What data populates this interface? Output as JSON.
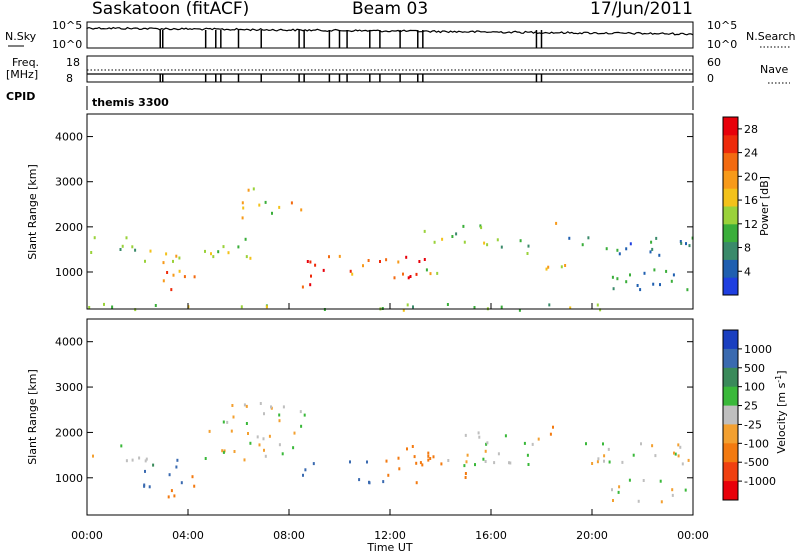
{
  "header": {
    "station": "Saskatoon (fitACF)",
    "beam": "Beam 03",
    "date": "17/Jun/2011"
  },
  "top_panels": {
    "noise_label_left": "N.Sky",
    "noise_label_right": "N.Search",
    "noise_ticks_left": [
      "10^5",
      "10^0"
    ],
    "noise_ticks_right": [
      "10^5",
      "10^0"
    ],
    "freq_label": "Freq.",
    "freq_unit": "[MHz]",
    "freq_ticks": [
      "18",
      "8"
    ],
    "nave_label": "Nave",
    "nave_ticks": [
      "60",
      "0"
    ],
    "cpid_label": "CPID",
    "cpid_value": "themis 3300"
  },
  "chart_data": [
    {
      "type": "heatmap",
      "name": "power",
      "ylabel": "Slant Range [km]",
      "xlabel": "",
      "ylim": [
        180,
        4500
      ],
      "yticks": [
        "1000",
        "2000",
        "3000",
        "4000"
      ],
      "xlim": [
        0,
        24
      ],
      "colorbar": {
        "label": "Power [dB]",
        "ticks": [
          "4",
          "8",
          "12",
          "16",
          "20",
          "24",
          "28"
        ],
        "range": [
          0,
          30
        ],
        "colors": [
          "#1f3fe0",
          "#1f5fb0",
          "#3a8a6a",
          "#3aae3a",
          "#9ad23a",
          "#f3c21a",
          "#f79a1a",
          "#f36a10",
          "#ee2a0a",
          "#e8000a"
        ]
      },
      "regions": [
        {
          "t0": 0.0,
          "t1": 2.6,
          "r0": 1400,
          "r1": 1800,
          "level": 10
        },
        {
          "t0": 2.2,
          "t1": 4.0,
          "r0": 800,
          "r1": 1500,
          "level": 16
        },
        {
          "t0": 3.1,
          "t1": 4.4,
          "r0": 600,
          "r1": 1100,
          "level": 26
        },
        {
          "t0": 4.6,
          "t1": 6.6,
          "r0": 1300,
          "r1": 2000,
          "level": 14
        },
        {
          "t0": 6.0,
          "t1": 7.6,
          "r0": 2200,
          "r1": 2900,
          "level": 16
        },
        {
          "t0": 7.4,
          "t1": 8.6,
          "r0": 2300,
          "r1": 2600,
          "level": 20
        },
        {
          "t0": 8.1,
          "t1": 9.6,
          "r0": 650,
          "r1": 1400,
          "level": 28
        },
        {
          "t0": 9.8,
          "t1": 10.6,
          "r0": 900,
          "r1": 1400,
          "level": 22
        },
        {
          "t0": 10.6,
          "t1": 11.9,
          "r0": 1000,
          "r1": 1400,
          "level": 24
        },
        {
          "t0": 11.9,
          "t1": 13.4,
          "r0": 900,
          "r1": 1700,
          "level": 26
        },
        {
          "t0": 13.4,
          "t1": 14.6,
          "r0": 900,
          "r1": 1200,
          "level": 16
        },
        {
          "t0": 13.0,
          "t1": 16.2,
          "r0": 1600,
          "r1": 2100,
          "level": 12
        },
        {
          "t0": 16.2,
          "t1": 17.6,
          "r0": 1300,
          "r1": 1800,
          "level": 8
        },
        {
          "t0": 18.0,
          "t1": 19.0,
          "r0": 1000,
          "r1": 1500,
          "level": 18
        },
        {
          "t0": 18.3,
          "t1": 18.7,
          "r0": 1900,
          "r1": 2400,
          "level": 22
        },
        {
          "t0": 19.0,
          "t1": 24.0,
          "r0": 1300,
          "r1": 1800,
          "level": 6
        },
        {
          "t0": 20.6,
          "t1": 24.0,
          "r0": 500,
          "r1": 1100,
          "level": 6
        },
        {
          "t0": 0.0,
          "t1": 24.0,
          "r0": 180,
          "r1": 320,
          "level": 12
        }
      ]
    },
    {
      "type": "heatmap",
      "name": "velocity",
      "ylabel": "Slant Range [km]",
      "xlabel": "Time UT",
      "ylim": [
        180,
        4500
      ],
      "yticks": [
        "1000",
        "2000",
        "3000",
        "4000"
      ],
      "xlim": [
        0,
        24
      ],
      "xticks": [
        "00:00",
        "04:00",
        "08:00",
        "12:00",
        "16:00",
        "20:00",
        "00:00"
      ],
      "colorbar": {
        "label": "Velocity [m s-1]",
        "ticks": [
          "1000",
          "500",
          "100",
          "25",
          "-25",
          "-100",
          "-500",
          "-1000"
        ],
        "colors": [
          "#1a3fc0",
          "#3a6ab0",
          "#3a8a5a",
          "#3ab83a",
          "#bfbfbf",
          "#f3a030",
          "#f37a10",
          "#f04010",
          "#e8000a"
        ]
      },
      "regions": [
        {
          "t0": 0.0,
          "t1": 2.6,
          "r0": 1400,
          "r1": 1800,
          "v": 0
        },
        {
          "t0": 2.2,
          "t1": 4.0,
          "r0": 800,
          "r1": 1500,
          "v": 150
        },
        {
          "t0": 3.1,
          "t1": 4.4,
          "r0": 600,
          "r1": 1100,
          "v": -300
        },
        {
          "t0": 4.6,
          "t1": 8.6,
          "r0": 1400,
          "r1": 2700,
          "v": 0
        },
        {
          "t0": 8.1,
          "t1": 9.0,
          "r0": 900,
          "r1": 1400,
          "v": 150
        },
        {
          "t0": 10.0,
          "t1": 11.8,
          "r0": 900,
          "r1": 1400,
          "v": 150
        },
        {
          "t0": 11.8,
          "t1": 14.4,
          "r0": 900,
          "r1": 1800,
          "v": -300
        },
        {
          "t0": 14.4,
          "t1": 15.0,
          "r0": 900,
          "r1": 1300,
          "v": -300
        },
        {
          "t0": 14.0,
          "t1": 18.0,
          "r0": 1300,
          "r1": 2100,
          "v": 0
        },
        {
          "t0": 18.2,
          "t1": 18.8,
          "r0": 1900,
          "r1": 2300,
          "v": -300
        },
        {
          "t0": 18.0,
          "t1": 24.0,
          "r0": 1300,
          "r1": 1800,
          "v": 0
        },
        {
          "t0": 20.6,
          "t1": 24.0,
          "r0": 500,
          "r1": 1000,
          "v": 0
        }
      ]
    }
  ]
}
